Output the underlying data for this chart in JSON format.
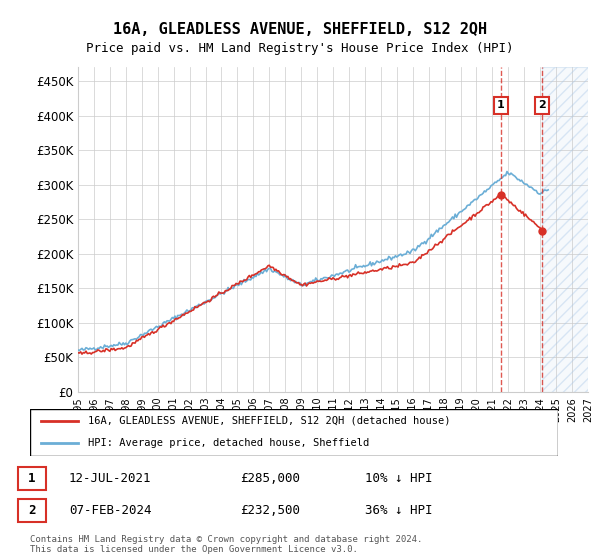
{
  "title": "16A, GLEADLESS AVENUE, SHEFFIELD, S12 2QH",
  "subtitle": "Price paid vs. HM Land Registry's House Price Index (HPI)",
  "legend_line1": "16A, GLEADLESS AVENUE, SHEFFIELD, S12 2QH (detached house)",
  "legend_line2": "HPI: Average price, detached house, Sheffield",
  "footnote": "Contains HM Land Registry data © Crown copyright and database right 2024.\nThis data is licensed under the Open Government Licence v3.0.",
  "transaction1_label": "1",
  "transaction1_date": "12-JUL-2021",
  "transaction1_price": "£285,000",
  "transaction1_hpi": "10% ↓ HPI",
  "transaction2_label": "2",
  "transaction2_date": "07-FEB-2024",
  "transaction2_price": "£232,500",
  "transaction2_hpi": "36% ↓ HPI",
  "hpi_color": "#6baed6",
  "price_color": "#d73027",
  "marker1_color": "#d73027",
  "marker2_color": "#d73027",
  "future_hatch_color": "#c6dbef",
  "ylim": [
    0,
    470000
  ],
  "yticks": [
    0,
    50000,
    100000,
    150000,
    200000,
    250000,
    300000,
    350000,
    400000,
    450000
  ],
  "ytick_labels": [
    "£0",
    "£50K",
    "£100K",
    "£150K",
    "£200K",
    "£250K",
    "£300K",
    "£350K",
    "£400K",
    "£450K"
  ],
  "start_year": 1995,
  "end_year": 2027
}
